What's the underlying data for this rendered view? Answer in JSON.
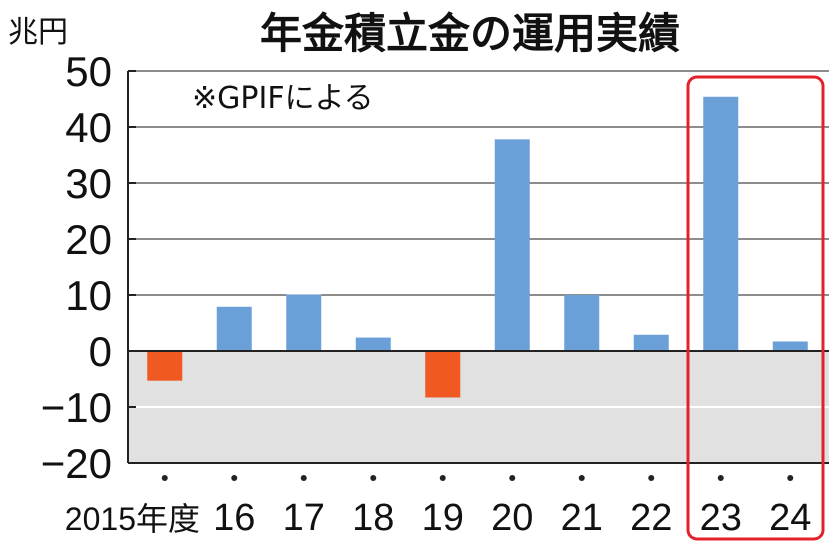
{
  "chart_data": {
    "type": "bar",
    "title": "年金積立金の運用実績",
    "unit_label": "兆円",
    "note": "※GPIFによる",
    "categories": [
      "2015年度",
      "16",
      "17",
      "18",
      "19",
      "20",
      "21",
      "22",
      "23",
      "24"
    ],
    "values": [
      -5.3,
      7.9,
      10.1,
      2.4,
      -8.3,
      37.8,
      10.0,
      2.9,
      45.4,
      1.7
    ],
    "ylim": [
      -20,
      50
    ],
    "yticks": [
      "50",
      "40",
      "30",
      "20",
      "10",
      "0",
      "−10",
      "−20"
    ],
    "ytick_values": [
      50,
      40,
      30,
      20,
      10,
      0,
      -10,
      -20
    ],
    "highlighted_categories": [
      "23",
      "24"
    ],
    "grid": true,
    "colors": {
      "positive": "#6a9fd8",
      "negative": "#f05a22",
      "negative_region": "#e1e1e1",
      "grid": "#1a1a1a",
      "highlight_box": "#e4202b",
      "axis": "#222222"
    }
  }
}
